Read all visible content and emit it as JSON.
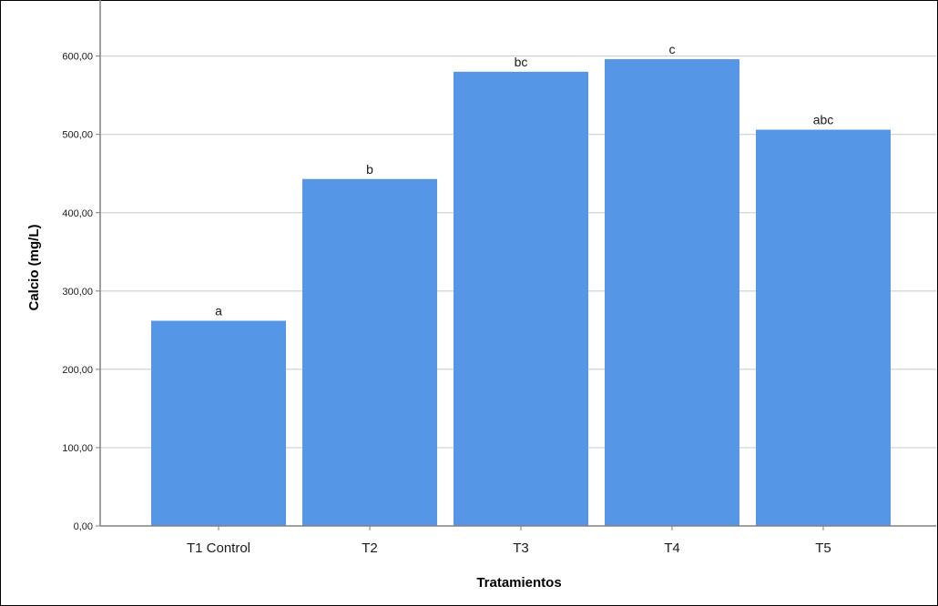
{
  "chart_data": {
    "type": "bar",
    "title": "",
    "xlabel": "Tratamientos",
    "ylabel": "Calcio (mg/L)",
    "categories": [
      "T1 Control",
      "T2",
      "T3",
      "T4",
      "T5"
    ],
    "values": [
      262,
      443,
      580,
      596,
      506
    ],
    "data_labels": [
      "a",
      "b",
      "bc",
      "c",
      "abc"
    ],
    "ylim": [
      0,
      660
    ],
    "yticks": [
      0,
      100,
      200,
      300,
      400,
      500,
      600
    ],
    "ytick_labels": [
      "0,00",
      "100,00",
      "200,00",
      "300,00",
      "400,00",
      "500,00",
      "600,00"
    ],
    "grid": true,
    "colors": {
      "bar": "#5596e6",
      "grid": "#c8c8c8",
      "axis": "#808080"
    }
  }
}
